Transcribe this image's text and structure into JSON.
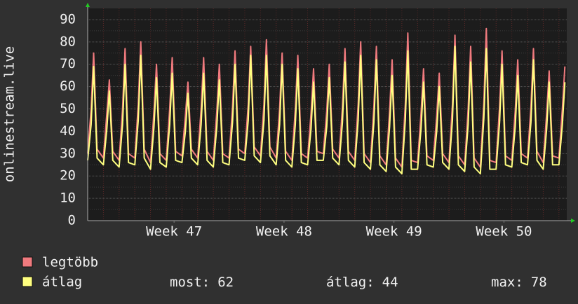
{
  "chart_data": {
    "type": "line",
    "y_label": "onlinestream.live",
    "xlim": [
      0,
      30.5
    ],
    "xticks": [
      {
        "value": 5.5,
        "label": "Week 47"
      },
      {
        "value": 12.5,
        "label": "Week 48"
      },
      {
        "value": 19.5,
        "label": "Week 49"
      },
      {
        "value": 26.5,
        "label": "Week 50"
      }
    ],
    "ylim": [
      0,
      95
    ],
    "yticks": [
      0,
      10,
      20,
      30,
      40,
      50,
      60,
      70,
      80,
      90
    ],
    "grid": true,
    "x": [
      0,
      0.22,
      0.38,
      0.6,
      1,
      1.22,
      1.38,
      1.6,
      2,
      2.22,
      2.38,
      2.6,
      3,
      3.22,
      3.38,
      3.6,
      4,
      4.22,
      4.38,
      4.6,
      5,
      5.22,
      5.38,
      5.6,
      6,
      6.22,
      6.38,
      6.6,
      7,
      7.22,
      7.38,
      7.6,
      8,
      8.22,
      8.38,
      8.6,
      9,
      9.22,
      9.38,
      9.6,
      10,
      10.22,
      10.38,
      10.6,
      11,
      11.22,
      11.38,
      11.6,
      12,
      12.22,
      12.38,
      12.6,
      13,
      13.22,
      13.38,
      13.6,
      14,
      14.22,
      14.38,
      14.6,
      15,
      15.22,
      15.38,
      15.6,
      16,
      16.22,
      16.38,
      16.6,
      17,
      17.22,
      17.38,
      17.6,
      18,
      18.22,
      18.38,
      18.6,
      19,
      19.22,
      19.38,
      19.6,
      20,
      20.22,
      20.38,
      20.6,
      21,
      21.22,
      21.38,
      21.6,
      22,
      22.22,
      22.38,
      22.6,
      23,
      23.22,
      23.38,
      23.6,
      24,
      24.22,
      24.38,
      24.6,
      25,
      25.22,
      25.38,
      25.6,
      26,
      26.22,
      26.38,
      26.6,
      27,
      27.22,
      27.38,
      27.6,
      28,
      28.22,
      28.38,
      28.6,
      29,
      29.22,
      29.38,
      29.6,
      30,
      30.22,
      30.38
    ],
    "series": [
      {
        "name": "legtöbb",
        "color": "#f07a7e",
        "values": [
          30,
          50,
          75,
          32,
          28,
          48,
          63,
          31,
          27,
          50,
          77,
          30,
          28,
          52,
          80,
          32,
          26,
          49,
          70,
          30,
          27,
          50,
          73,
          31,
          29,
          47,
          62,
          32,
          28,
          50,
          73,
          31,
          27,
          49,
          70,
          30,
          28,
          51,
          76,
          32,
          30,
          52,
          78,
          33,
          29,
          52,
          81,
          33,
          28,
          50,
          75,
          31,
          27,
          50,
          74,
          30,
          28,
          48,
          68,
          31,
          30,
          49,
          70,
          32,
          28,
          51,
          77,
          31,
          27,
          52,
          80,
          30,
          26,
          51,
          78,
          29,
          25,
          49,
          72,
          28,
          24,
          52,
          84,
          27,
          26,
          48,
          68,
          29,
          27,
          47,
          66,
          30,
          26,
          52,
          83,
          29,
          25,
          50,
          78,
          28,
          24,
          53,
          86,
          27,
          26,
          51,
          76,
          29,
          27,
          49,
          72,
          30,
          28,
          51,
          77,
          31,
          26,
          48,
          67,
          29,
          28,
          50,
          69
        ]
      },
      {
        "name": "átlag",
        "color": "#ffff80",
        "values": [
          27,
          43,
          69,
          28,
          25,
          41,
          58,
          27,
          24,
          43,
          70,
          26,
          25,
          45,
          74,
          28,
          23,
          42,
          64,
          26,
          24,
          43,
          66,
          27,
          26,
          40,
          57,
          28,
          25,
          43,
          66,
          27,
          24,
          42,
          63,
          26,
          25,
          44,
          70,
          28,
          27,
          45,
          74,
          29,
          26,
          45,
          74,
          29,
          25,
          43,
          70,
          27,
          24,
          43,
          68,
          26,
          25,
          41,
          62,
          27,
          27,
          42,
          64,
          28,
          25,
          44,
          71,
          27,
          24,
          45,
          74,
          26,
          23,
          44,
          72,
          25,
          22,
          42,
          65,
          24,
          21,
          45,
          76,
          23,
          23,
          41,
          62,
          25,
          24,
          40,
          60,
          26,
          23,
          45,
          78,
          25,
          22,
          43,
          71,
          24,
          21,
          46,
          77,
          23,
          23,
          44,
          70,
          25,
          24,
          42,
          65,
          26,
          25,
          44,
          72,
          27,
          23,
          41,
          62,
          25,
          25,
          43,
          62
        ]
      }
    ],
    "legend_stats": [
      {
        "label": "most:",
        "value": 62
      },
      {
        "label": "átlag:",
        "value": 44
      },
      {
        "label": "max:",
        "value": 78
      }
    ]
  }
}
